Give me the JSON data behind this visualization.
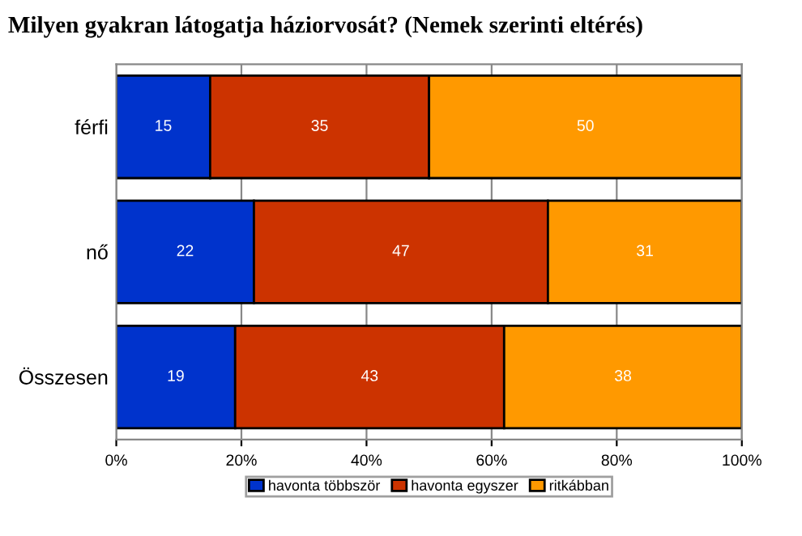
{
  "chart_data": {
    "type": "bar",
    "title": "Milyen gyakran látogatja háziorvosát? (Nemek szerinti eltérés)",
    "orientation": "horizontal",
    "stacked": true,
    "data_labels": true,
    "categories": [
      "férfi",
      "nő",
      "Összesen"
    ],
    "series": [
      {
        "name": "havonta többször",
        "color": "#0033cc",
        "values": [
          15,
          22,
          19
        ]
      },
      {
        "name": "havonta egyszer",
        "color": "#cc3300",
        "values": [
          35,
          47,
          43
        ]
      },
      {
        "name": "ritkábban",
        "color": "#ff9900",
        "values": [
          50,
          31,
          38
        ]
      }
    ],
    "xlim": [
      0,
      100
    ],
    "xticks": [
      {
        "value": 0,
        "label": "0%"
      },
      {
        "value": 20,
        "label": "20%"
      },
      {
        "value": 40,
        "label": "40%"
      },
      {
        "value": 60,
        "label": "60%"
      },
      {
        "value": 80,
        "label": "80%"
      },
      {
        "value": 100,
        "label": "100%"
      }
    ],
    "grid": "x",
    "legend": "bottom"
  }
}
